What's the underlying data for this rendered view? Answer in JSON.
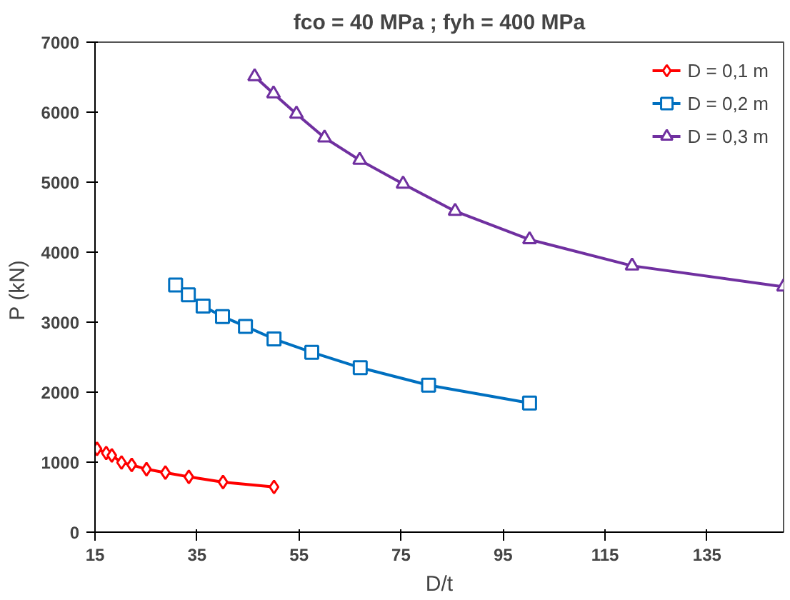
{
  "chart_data": {
    "type": "line",
    "title": "fco = 40 MPa ; fyh = 400 MPa",
    "xlabel": "D/t",
    "ylabel": "P  (kN)",
    "xlim": [
      15,
      150
    ],
    "xticks": [
      15,
      35,
      55,
      75,
      95,
      115,
      135
    ],
    "ylim": [
      0,
      7000
    ],
    "yticks": [
      0,
      1000,
      2000,
      3000,
      4000,
      5000,
      6000,
      7000
    ],
    "grid": false,
    "legend": "top right",
    "series": [
      {
        "name": "D = 0,1 m",
        "color": "#ff0000",
        "marker": "diamond",
        "x": [
          15.4,
          17.2,
          18.3,
          20.2,
          22.2,
          25.1,
          28.8,
          33.4,
          40.1,
          50.1
        ],
        "values": [
          1190,
          1130,
          1095,
          995,
          960,
          900,
          850,
          790,
          715,
          645
        ]
      },
      {
        "name": "D = 0,2 m",
        "color": "#0070c0",
        "marker": "square",
        "x": [
          30.8,
          33.3,
          36.2,
          40,
          44.5,
          50.1,
          57.5,
          67,
          80.4,
          100.2
        ],
        "values": [
          3530,
          3390,
          3230,
          3080,
          2940,
          2760,
          2570,
          2350,
          2100,
          1845
        ]
      },
      {
        "name": "D = 0,3 m",
        "color": "#7030a0",
        "marker": "triangle",
        "x": [
          46.3,
          50,
          54.5,
          60,
          66.9,
          75.4,
          85.6,
          100.2,
          120.3,
          150
        ],
        "values": [
          6510,
          6265,
          5975,
          5635,
          5315,
          4975,
          4585,
          4180,
          3805,
          3505
        ]
      }
    ]
  }
}
